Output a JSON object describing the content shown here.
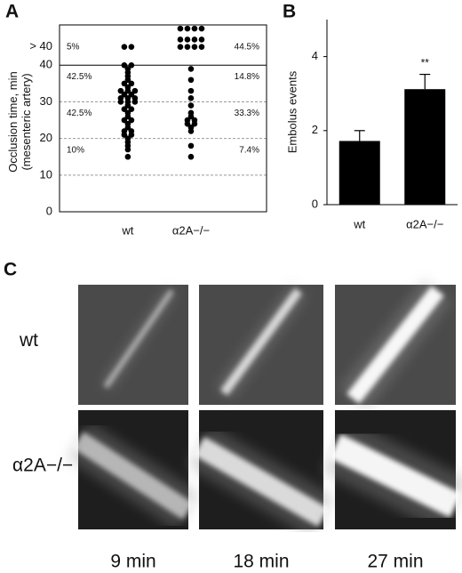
{
  "panel_labels": [
    "A",
    "B",
    "C"
  ],
  "chart_data": [
    {
      "type": "strip",
      "ylabel": [
        "Occlusion time, min",
        "(mesenteric artery)"
      ],
      "categories": [
        "wt",
        "α2A−/−"
      ],
      "values": [
        [
          45,
          45,
          40,
          40,
          39,
          38,
          37,
          36,
          35,
          35,
          34,
          33,
          33,
          33,
          32,
          32,
          31,
          31,
          31,
          30,
          30,
          30,
          29,
          28,
          28,
          27,
          26,
          25,
          25,
          24,
          23,
          22,
          22,
          21,
          21,
          20,
          19,
          18,
          17,
          15
        ],
        [
          50,
          50,
          50,
          50,
          47,
          47,
          47,
          47,
          45,
          45,
          45,
          45,
          39,
          36,
          33,
          31,
          29,
          27,
          26,
          25,
          25,
          24,
          24,
          23,
          22,
          18,
          15
        ]
      ],
      "percent_labels": [
        [
          "5%",
          "42.5%",
          "42.5%",
          "10%"
        ],
        [
          "44.5%",
          "14.8%",
          "33.3%",
          "7.4%"
        ]
      ],
      "color": "#000000",
      "ylim": [
        0,
        51
      ],
      "yticks": [
        0,
        10,
        20,
        30,
        40,
        {
          "value": 45,
          "label": "> 40"
        }
      ],
      "threshold": 40,
      "grid": true
    },
    {
      "type": "bar",
      "ylabel": "Embolus events",
      "categories": [
        "wt",
        "α2A−/−"
      ],
      "values": [
        1.72,
        3.12
      ],
      "errors": [
        0.28,
        0.4
      ],
      "value_annotations": [
        null,
        "**"
      ],
      "color": "#000000",
      "ylim": [
        0,
        5
      ],
      "yticks": [
        0,
        2,
        4
      ]
    }
  ],
  "micrographs": {
    "rows": [
      "wt",
      "α2A−/−"
    ],
    "columns": [
      "9 min",
      "18 min",
      "27 min"
    ]
  }
}
